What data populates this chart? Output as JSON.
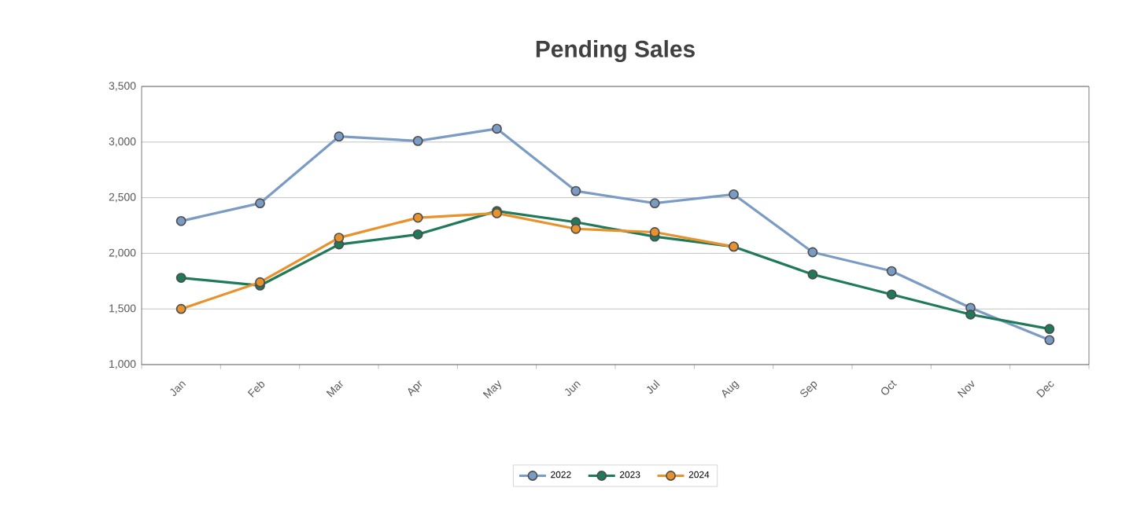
{
  "chart_data": {
    "type": "line",
    "title": "Pending Sales",
    "categories": [
      "Jan",
      "Feb",
      "Mar",
      "Apr",
      "May",
      "Jun",
      "Jul",
      "Aug",
      "Sep",
      "Oct",
      "Nov",
      "Dec"
    ],
    "series": [
      {
        "name": "2022",
        "color": "#7a9cc4",
        "values": [
          2290,
          2450,
          3050,
          3010,
          3120,
          2560,
          2450,
          2530,
          2010,
          1840,
          1510,
          1220
        ]
      },
      {
        "name": "2023",
        "color": "#1f7a5a",
        "values": [
          1780,
          1710,
          2080,
          2170,
          2380,
          2280,
          2150,
          2060,
          1810,
          1630,
          1450,
          1320
        ]
      },
      {
        "name": "2024",
        "color": "#e8922e",
        "values": [
          1500,
          1740,
          2140,
          2320,
          2360,
          2220,
          2190,
          2060,
          null,
          null,
          null,
          null
        ]
      }
    ],
    "ylim": [
      1000,
      3500
    ],
    "yticks": [
      {
        "value": 1000,
        "label": "1,000"
      },
      {
        "value": 1500,
        "label": "1,500"
      },
      {
        "value": 2000,
        "label": "2,000"
      },
      {
        "value": 2500,
        "label": "2,500"
      },
      {
        "value": 3000,
        "label": "3,000"
      },
      {
        "value": 3500,
        "label": "3,500"
      }
    ],
    "grid": "y",
    "legend": "bottom",
    "marker": "circle",
    "line_style": "solid"
  }
}
